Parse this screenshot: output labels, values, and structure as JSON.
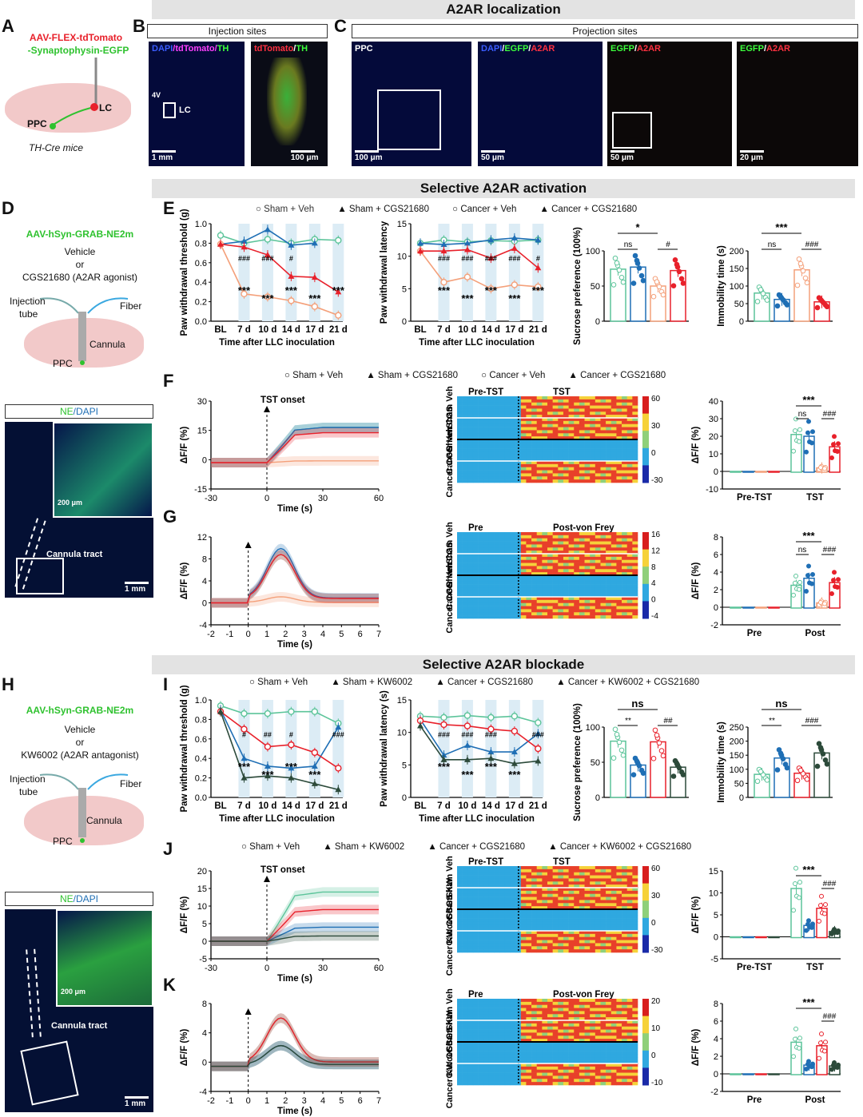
{
  "banners": {
    "top": "A2AR localization",
    "mid": "Selective A2AR activation",
    "bottom": "Selective A2AR blockade"
  },
  "panels": [
    "A",
    "B",
    "C",
    "D",
    "E",
    "F",
    "G",
    "H",
    "I",
    "J",
    "K"
  ],
  "panelA": {
    "virus1": "AAV-FLEX-tdTomato",
    "virus2": "-Synaptophysin-EGFP",
    "lc": "LC",
    "ppc": "PPC",
    "mice": "TH-Cre mice"
  },
  "panelB": {
    "header": "Injection sites",
    "img1_cap_a": "DAPI",
    "img1_cap_b": "/tdTomato/",
    "img1_cap_c": "TH",
    "v4": "4V",
    "lc": "LC",
    "sb1": "1 mm",
    "img2_cap_a": "tdTomato",
    "img2_cap_b": "/",
    "img2_cap_c": "TH",
    "sb2": "100 μm"
  },
  "panelC": {
    "header": "Projection sites",
    "cap1": "PPC",
    "sb1": "100 μm",
    "cap2_a": "DAPI",
    "cap2_b": "/",
    "cap2_c": "EGFP",
    "cap2_d": "/",
    "cap2_e": "A2AR",
    "sb2": "50 μm",
    "cap3_a": "EGFP",
    "cap3_b": "/",
    "cap3_c": "A2AR",
    "sb3": "50 μm",
    "cap4_a": "EGFP",
    "cap4_b": "/",
    "cap4_c": "A2AR",
    "sb4": "20 μm"
  },
  "panelD": {
    "virus": "AAV-hSyn-GRAB-NE2m",
    "veh": "Vehicle",
    "or": "or",
    "drug": "CGS21680 (A2AR agonist)",
    "inj": "Injection",
    "tube": "tube",
    "fiber": "Fiber",
    "cannula": "Cannula",
    "ppc": "PPC",
    "img_cap_a": "NE",
    "img_cap_b": "/DAPI",
    "inset_sb": "200 μm",
    "tract": "Cannula tract",
    "sb": "1 mm"
  },
  "panelH": {
    "virus": "AAV-hSyn-GRAB-NE2m",
    "veh": "Vehicle",
    "or": "or",
    "drug": "KW6002 (A2AR antagonist)",
    "inj": "Injection",
    "tube": "tube",
    "fiber": "Fiber",
    "cannula": "Cannula",
    "ppc": "PPC",
    "img_cap_a": "NE",
    "img_cap_b": "/DAPI",
    "inset_sb": "200 μm",
    "tract": "Cannula tract",
    "sb": "1 mm"
  },
  "legendE": [
    "Sham + Veh",
    "Sham + CGS21680",
    "Cancer + Veh",
    "Cancer + CGS21680"
  ],
  "legendF": [
    "Sham + Veh",
    "Sham + CGS21680",
    "Cancer + Veh",
    "Cancer + CGS21680"
  ],
  "legendI": [
    "Sham + Veh",
    "Sham + KW6002",
    "Cancer + CGS21680",
    "Cancer + KW6002 + CGS21680"
  ],
  "legendJ": [
    "Sham + Veh",
    "Sham + KW6002",
    "Cancer + CGS21680",
    "Cancer + KW6002 + CGS21680"
  ],
  "colors": {
    "shamVeh": "#5cc49a",
    "shamCGS": "#1f6fb5",
    "cancerVeh": "#f4a07a",
    "cancerCGS": "#e8212b",
    "cancerKW": "#2c4a3a"
  },
  "chart_data": [
    {
      "id": "E1",
      "type": "line",
      "ylabel": "Paw withdrawal threshold (g)",
      "xlabel": "Time after LLC inoculation",
      "categories": [
        "BL",
        "7 d",
        "10 d",
        "14 d",
        "17 d",
        "21 d"
      ],
      "ylim": [
        0,
        1.0
      ],
      "yticks": [
        "0.0",
        "0.2",
        "0.4",
        "0.6",
        "0.8",
        "1.0"
      ],
      "series": [
        {
          "name": "Sham + Veh",
          "values": [
            0.88,
            0.8,
            0.84,
            0.8,
            0.84,
            0.83
          ]
        },
        {
          "name": "Sham + CGS21680",
          "values": [
            0.79,
            0.82,
            0.94,
            0.78,
            0.8,
            null
          ]
        },
        {
          "name": "Cancer + Veh",
          "values": [
            0.79,
            0.28,
            0.25,
            0.21,
            0.15,
            0.06
          ]
        },
        {
          "name": "Cancer + CGS21680",
          "values": [
            0.79,
            0.76,
            0.68,
            0.46,
            0.45,
            0.3
          ]
        }
      ],
      "annot": [
        "***",
        "***",
        "***",
        "***",
        "***",
        "###",
        "###",
        "#"
      ]
    },
    {
      "id": "E2",
      "type": "line",
      "ylabel": "Paw withdrawal latency",
      "xlabel": "Time after LLC inoculation",
      "categories": [
        "BL",
        "7 d",
        "10 d",
        "14 d",
        "17 d",
        "21 d"
      ],
      "ylim": [
        0,
        15
      ],
      "yticks": [
        "0",
        "5",
        "10",
        "15"
      ],
      "series": [
        {
          "name": "Sham + Veh",
          "values": [
            12.0,
            12.5,
            12.2,
            12.4,
            12.3,
            12.5
          ]
        },
        {
          "name": "Sham + CGS21680",
          "values": [
            12.0,
            11.8,
            12.0,
            12.5,
            12.8,
            12.5
          ]
        },
        {
          "name": "Cancer + Veh",
          "values": [
            10.8,
            6.0,
            6.8,
            5.0,
            5.6,
            5.3
          ]
        },
        {
          "name": "Cancer + CGS21680",
          "values": [
            10.8,
            10.8,
            11.0,
            9.7,
            11.2,
            8.2
          ]
        }
      ],
      "annot": [
        "***",
        "***",
        "***",
        "***",
        "***",
        "###",
        "###",
        "###",
        "###",
        "#"
      ]
    },
    {
      "id": "E3",
      "type": "bar",
      "ylabel": "Sucrose preference (100%)",
      "ylim": [
        0,
        100
      ],
      "yticks": [
        "0",
        "50",
        "100"
      ],
      "categories": [
        "Sham + Veh",
        "Sham + CGS21680",
        "Cancer + Veh",
        "Cancer + CGS21680"
      ],
      "values": [
        74,
        77,
        50,
        72
      ],
      "annot": [
        "*",
        "ns",
        "#"
      ]
    },
    {
      "id": "E4",
      "type": "bar",
      "ylabel": "Immobility time (s)",
      "ylim": [
        0,
        200
      ],
      "yticks": [
        "0",
        "50",
        "100",
        "150",
        "200"
      ],
      "categories": [
        "Sham + Veh",
        "Sham + CGS21680",
        "Cancer + Veh",
        "Cancer + CGS21680"
      ],
      "values": [
        80,
        62,
        146,
        55
      ],
      "annot": [
        "***",
        "ns",
        "###"
      ]
    },
    {
      "id": "F1",
      "type": "line",
      "ylabel": "ΔF/F (%)",
      "xlabel": "Time (s)",
      "ylim": [
        -15,
        35
      ],
      "yticks": [
        "-15",
        "0",
        "15",
        "30"
      ],
      "xticks": [
        "-30",
        "0",
        "30",
        "60"
      ],
      "marker": "TST onset"
    },
    {
      "id": "F2",
      "type": "heatmap",
      "title_left": "Pre-TST",
      "title_right": "TST",
      "rows": [
        "Sham Veh",
        "Sham CGS",
        "Cancer Veh",
        "Cancer CGS"
      ],
      "colorbar": [
        "60",
        "30",
        "0",
        "-30"
      ]
    },
    {
      "id": "F3",
      "type": "bar",
      "ylabel": "ΔF/F (%)",
      "ylim": [
        -10,
        40
      ],
      "yticks": [
        "-10",
        "0",
        "10",
        "20",
        "30",
        "40"
      ],
      "categories": [
        "Pre-TST",
        "TST"
      ],
      "series": [
        {
          "name": "Sham + Veh",
          "values": [
            0,
            21
          ]
        },
        {
          "name": "Sham + CGS21680",
          "values": [
            0,
            20
          ]
        },
        {
          "name": "Cancer + Veh",
          "values": [
            0,
            2
          ]
        },
        {
          "name": "Cancer + CGS21680",
          "values": [
            0,
            14
          ]
        }
      ],
      "annot": [
        "***",
        "ns",
        "###"
      ]
    },
    {
      "id": "G1",
      "type": "line",
      "ylabel": "ΔF/F (%)",
      "xlabel": "Time (s)",
      "ylim": [
        -4,
        12
      ],
      "yticks": [
        "-4",
        "0",
        "4",
        "8",
        "12"
      ],
      "xticks": [
        "-2",
        "-1",
        "0",
        "1",
        "2",
        "3",
        "4",
        "5",
        "6",
        "7"
      ]
    },
    {
      "id": "G2",
      "type": "heatmap",
      "title_left": "Pre",
      "title_right": "Post-von Frey",
      "rows": [
        "Sham Veh",
        "Sham CGS",
        "Cancer Veh",
        "Cancer CGS"
      ],
      "colorbar": [
        "16",
        "12",
        "8",
        "4",
        "0",
        "-4"
      ]
    },
    {
      "id": "G3",
      "type": "bar",
      "ylabel": "ΔF/F (%)",
      "ylim": [
        -2,
        8
      ],
      "yticks": [
        "-2",
        "0",
        "2",
        "4",
        "6",
        "8"
      ],
      "categories": [
        "Pre",
        "Post"
      ],
      "series": [
        {
          "name": "Sham + Veh",
          "values": [
            0,
            2.5
          ]
        },
        {
          "name": "Sham + CGS21680",
          "values": [
            0,
            3.3
          ]
        },
        {
          "name": "Cancer + Veh",
          "values": [
            0,
            0.5
          ]
        },
        {
          "name": "Cancer + CGS21680",
          "values": [
            0,
            2.8
          ]
        }
      ],
      "annot": [
        "***",
        "ns",
        "###"
      ]
    },
    {
      "id": "I1",
      "type": "line",
      "ylabel": "Paw withdrawal threshold (g)",
      "xlabel": "Time after LLC inoculation",
      "categories": [
        "BL",
        "7 d",
        "10 d",
        "14 d",
        "17 d",
        "21 d"
      ],
      "ylim": [
        0,
        1.0
      ],
      "yticks": [
        "0.0",
        "0.2",
        "0.4",
        "0.6",
        "0.8",
        "1.0"
      ],
      "series": [
        {
          "name": "Sham + Veh",
          "values": [
            0.94,
            0.86,
            0.86,
            0.88,
            0.88,
            0.76
          ]
        },
        {
          "name": "Sham + KW6002",
          "values": [
            0.9,
            0.4,
            0.32,
            0.3,
            0.32,
            0.72
          ]
        },
        {
          "name": "Cancer + CGS21680",
          "values": [
            0.88,
            0.7,
            0.52,
            0.54,
            0.46,
            0.3
          ]
        },
        {
          "name": "Cancer + KW6002 + CGS21680",
          "values": [
            0.88,
            0.2,
            0.22,
            0.2,
            0.14,
            0.08
          ]
        }
      ],
      "annot": [
        "***",
        "***",
        "***",
        "***",
        "###",
        "#",
        "##",
        "#"
      ]
    },
    {
      "id": "I2",
      "type": "line",
      "ylabel": "Paw withdrawal latency (s)",
      "xlabel": "Time after LLC inoculation",
      "categories": [
        "BL",
        "7 d",
        "10 d",
        "14 d",
        "17 d",
        "21 d"
      ],
      "ylim": [
        0,
        15
      ],
      "yticks": [
        "0",
        "5",
        "10",
        "15"
      ],
      "series": [
        {
          "name": "Sham + Veh",
          "values": [
            12.5,
            12.3,
            12.6,
            12.3,
            12.5,
            11.5
          ]
        },
        {
          "name": "Sham + KW6002",
          "values": [
            12.0,
            6.5,
            8.0,
            7.0,
            7.0,
            9.8
          ]
        },
        {
          "name": "Cancer + CGS21680",
          "values": [
            11.8,
            11.2,
            11.0,
            10.5,
            10.2,
            7.5
          ]
        },
        {
          "name": "Cancer + KW6002 + CGS21680",
          "values": [
            11.0,
            5.8,
            5.8,
            6.0,
            5.2,
            5.6
          ]
        }
      ],
      "annot": [
        "***",
        "***",
        "***",
        "***",
        "###",
        "###",
        "###",
        "###"
      ]
    },
    {
      "id": "I3",
      "type": "bar",
      "ylabel": "Sucrose preference (100%)",
      "ylim": [
        0,
        100
      ],
      "yticks": [
        "0",
        "50",
        "100"
      ],
      "categories": [
        "Sham + Veh",
        "Sham + KW6002",
        "Cancer + CGS21680",
        "Cancer + KW6002 + CGS21680"
      ],
      "values": [
        80,
        46,
        79,
        43
      ],
      "annot": [
        "ns",
        "**",
        "##"
      ]
    },
    {
      "id": "I4",
      "type": "bar",
      "ylabel": "Immobility time (s)",
      "ylim": [
        0,
        250
      ],
      "yticks": [
        "0",
        "50",
        "100",
        "150",
        "200",
        "250"
      ],
      "categories": [
        "Sham + Veh",
        "Sham + KW6002",
        "Cancer + CGS21680",
        "Cancer + KW6002 + CGS21680"
      ],
      "values": [
        82,
        140,
        86,
        158
      ],
      "annot": [
        "ns",
        "**",
        "###"
      ]
    },
    {
      "id": "J1",
      "type": "line",
      "ylabel": "ΔF/F (%)",
      "xlabel": "Time (s)",
      "ylim": [
        -5,
        20
      ],
      "yticks": [
        "-5",
        "0",
        "5",
        "10",
        "15",
        "20"
      ],
      "xticks": [
        "-30",
        "0",
        "30",
        "60"
      ],
      "marker": "TST onset"
    },
    {
      "id": "J2",
      "type": "heatmap",
      "title_left": "Pre-TST",
      "title_right": "TST",
      "rows": [
        "Sham Veh",
        "Sham KW",
        "Cancer CGS",
        "Cancer KW CGS"
      ],
      "colorbar": [
        "60",
        "30",
        "0",
        "-30"
      ]
    },
    {
      "id": "J3",
      "type": "bar",
      "ylabel": "ΔF/F (%)",
      "ylim": [
        -5,
        15
      ],
      "yticks": [
        "-5",
        "0",
        "5",
        "10",
        "15"
      ],
      "categories": [
        "Pre-TST",
        "TST"
      ],
      "series": [
        {
          "name": "Sham + Veh",
          "values": [
            0,
            11
          ]
        },
        {
          "name": "Sham + KW6002",
          "values": [
            0,
            2.6
          ]
        },
        {
          "name": "Cancer + CGS21680",
          "values": [
            0,
            6.5
          ]
        },
        {
          "name": "Cancer + KW6002 + CGS21680",
          "values": [
            0,
            1.2
          ]
        }
      ],
      "annot": [
        "***",
        "###"
      ]
    },
    {
      "id": "K1",
      "type": "line",
      "ylabel": "ΔF/F (%)",
      "xlabel": "Time (s)",
      "ylim": [
        -4,
        10
      ],
      "yticks": [
        "-4",
        "0",
        "4",
        "8"
      ],
      "xticks": [
        "-2",
        "-1",
        "0",
        "1",
        "2",
        "3",
        "4",
        "5",
        "6",
        "7"
      ]
    },
    {
      "id": "K2",
      "type": "heatmap",
      "title_left": "Pre",
      "title_right": "Post-von Frey",
      "rows": [
        "Sham Veh",
        "Sham KW",
        "Cancer CGS",
        "Cancer KW CGS"
      ],
      "colorbar": [
        "20",
        "10",
        "0",
        "-10"
      ]
    },
    {
      "id": "K3",
      "type": "bar",
      "ylabel": "ΔF/F (%)",
      "ylim": [
        -2,
        8
      ],
      "yticks": [
        "-2",
        "0",
        "2",
        "4",
        "6",
        "8"
      ],
      "categories": [
        "Pre",
        "Post"
      ],
      "series": [
        {
          "name": "Sham + Veh",
          "values": [
            0,
            3.6
          ]
        },
        {
          "name": "Sham + KW6002",
          "values": [
            0,
            1.0
          ]
        },
        {
          "name": "Cancer + CGS21680",
          "values": [
            0,
            3.2
          ]
        },
        {
          "name": "Cancer + KW6002 + CGS21680",
          "values": [
            0,
            0.9
          ]
        }
      ],
      "annot": [
        "***",
        "###"
      ]
    }
  ]
}
